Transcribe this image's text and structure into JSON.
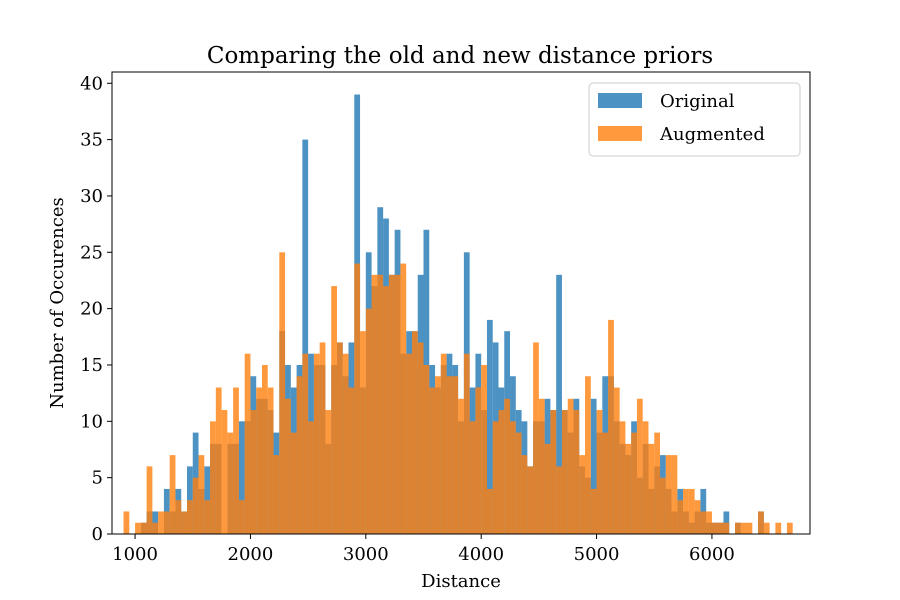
{
  "chart_data": {
    "type": "bar",
    "title": "Comparing the old and new distance priors",
    "xlabel": "Distance",
    "ylabel": "Number of Occurences",
    "xlim": [
      800,
      6850
    ],
    "ylim": [
      0,
      41
    ],
    "bin_width": 50,
    "xticks": [
      1000,
      2000,
      3000,
      4000,
      5000,
      6000
    ],
    "yticks": [
      0,
      5,
      10,
      15,
      20,
      25,
      30,
      35,
      40
    ],
    "grid": false,
    "legend_position": "top-right",
    "series": [
      {
        "name": "Original",
        "color": "#1f77b4",
        "opacity": 0.8,
        "bins": [
          [
            1050,
            1
          ],
          [
            1100,
            2
          ],
          [
            1150,
            2
          ],
          [
            1250,
            4
          ],
          [
            1300,
            2
          ],
          [
            1350,
            4
          ],
          [
            1400,
            2
          ],
          [
            1450,
            6
          ],
          [
            1500,
            9
          ],
          [
            1550,
            4
          ],
          [
            1600,
            6
          ],
          [
            1650,
            8
          ],
          [
            1700,
            8
          ],
          [
            1800,
            8
          ],
          [
            1850,
            8
          ],
          [
            1900,
            10
          ],
          [
            1950,
            10
          ],
          [
            2000,
            14
          ],
          [
            2050,
            12
          ],
          [
            2100,
            12
          ],
          [
            2150,
            11
          ],
          [
            2200,
            9
          ],
          [
            2250,
            18
          ],
          [
            2300,
            15
          ],
          [
            2350,
            13
          ],
          [
            2400,
            15
          ],
          [
            2450,
            35
          ],
          [
            2500,
            16
          ],
          [
            2550,
            15
          ],
          [
            2600,
            15
          ],
          [
            2650,
            8
          ],
          [
            2700,
            15
          ],
          [
            2750,
            17
          ],
          [
            2800,
            14
          ],
          [
            2850,
            17
          ],
          [
            2900,
            39
          ],
          [
            2950,
            13
          ],
          [
            3000,
            25
          ],
          [
            3050,
            22
          ],
          [
            3100,
            29
          ],
          [
            3150,
            28
          ],
          [
            3200,
            23
          ],
          [
            3250,
            27
          ],
          [
            3300,
            16
          ],
          [
            3350,
            18
          ],
          [
            3400,
            18
          ],
          [
            3450,
            23
          ],
          [
            3500,
            27
          ],
          [
            3550,
            15
          ],
          [
            3600,
            13
          ],
          [
            3650,
            15
          ],
          [
            3700,
            16
          ],
          [
            3750,
            15
          ],
          [
            3800,
            10
          ],
          [
            3850,
            25
          ],
          [
            3900,
            13
          ],
          [
            3950,
            16
          ],
          [
            4000,
            11
          ],
          [
            4050,
            19
          ],
          [
            4100,
            17
          ],
          [
            4150,
            13
          ],
          [
            4200,
            18
          ],
          [
            4250,
            14
          ],
          [
            4300,
            11
          ],
          [
            4350,
            10
          ],
          [
            4400,
            6
          ],
          [
            4450,
            10
          ],
          [
            4500,
            10
          ],
          [
            4550,
            12
          ],
          [
            4600,
            11
          ],
          [
            4650,
            23
          ],
          [
            4700,
            11
          ],
          [
            4750,
            9
          ],
          [
            4800,
            12
          ],
          [
            4850,
            6
          ],
          [
            4900,
            5
          ],
          [
            4950,
            12
          ],
          [
            5000,
            9
          ],
          [
            5050,
            14
          ],
          [
            5100,
            14
          ],
          [
            5150,
            10
          ],
          [
            5200,
            8
          ],
          [
            5250,
            7
          ],
          [
            5300,
            10
          ],
          [
            5350,
            5
          ],
          [
            5400,
            8
          ],
          [
            5450,
            4
          ],
          [
            5500,
            6
          ],
          [
            5550,
            7
          ],
          [
            5600,
            4
          ],
          [
            5650,
            2
          ],
          [
            5700,
            4
          ],
          [
            5750,
            2
          ],
          [
            5800,
            1
          ],
          [
            5850,
            2
          ],
          [
            5900,
            4
          ],
          [
            5950,
            1
          ],
          [
            6000,
            1
          ],
          [
            6050,
            1
          ],
          [
            6100,
            2
          ],
          [
            6200,
            1
          ],
          [
            6400,
            2
          ]
        ]
      },
      {
        "name": "Augmented",
        "color": "#ff7f0e",
        "opacity": 0.8,
        "bins": [
          [
            900,
            2
          ],
          [
            1000,
            1
          ],
          [
            1050,
            1
          ],
          [
            1100,
            6
          ],
          [
            1150,
            1
          ],
          [
            1200,
            2
          ],
          [
            1250,
            2
          ],
          [
            1300,
            7
          ],
          [
            1350,
            3
          ],
          [
            1400,
            2
          ],
          [
            1450,
            3
          ],
          [
            1500,
            5
          ],
          [
            1550,
            7
          ],
          [
            1600,
            3
          ],
          [
            1650,
            10
          ],
          [
            1700,
            13
          ],
          [
            1750,
            11
          ],
          [
            1800,
            9
          ],
          [
            1850,
            13
          ],
          [
            1900,
            3
          ],
          [
            1950,
            16
          ],
          [
            2000,
            11
          ],
          [
            2050,
            13
          ],
          [
            2100,
            15
          ],
          [
            2150,
            13
          ],
          [
            2200,
            7
          ],
          [
            2250,
            25
          ],
          [
            2300,
            12
          ],
          [
            2350,
            9
          ],
          [
            2400,
            14
          ],
          [
            2450,
            16
          ],
          [
            2500,
            10
          ],
          [
            2550,
            16
          ],
          [
            2600,
            17
          ],
          [
            2650,
            11
          ],
          [
            2700,
            22
          ],
          [
            2750,
            17
          ],
          [
            2800,
            16
          ],
          [
            2850,
            13
          ],
          [
            2900,
            24
          ],
          [
            2950,
            18
          ],
          [
            3000,
            20
          ],
          [
            3050,
            23
          ],
          [
            3100,
            23
          ],
          [
            3150,
            22
          ],
          [
            3200,
            23
          ],
          [
            3250,
            23
          ],
          [
            3300,
            24
          ],
          [
            3350,
            16
          ],
          [
            3400,
            18
          ],
          [
            3450,
            17
          ],
          [
            3500,
            15
          ],
          [
            3550,
            13
          ],
          [
            3600,
            14
          ],
          [
            3650,
            16
          ],
          [
            3700,
            14
          ],
          [
            3750,
            14
          ],
          [
            3800,
            12
          ],
          [
            3850,
            16
          ],
          [
            3900,
            10
          ],
          [
            3950,
            13
          ],
          [
            4000,
            15
          ],
          [
            4050,
            4
          ],
          [
            4100,
            10
          ],
          [
            4150,
            11
          ],
          [
            4200,
            12
          ],
          [
            4250,
            10
          ],
          [
            4300,
            9
          ],
          [
            4350,
            7
          ],
          [
            4400,
            6
          ],
          [
            4450,
            17
          ],
          [
            4500,
            12
          ],
          [
            4550,
            8
          ],
          [
            4600,
            11
          ],
          [
            4650,
            6
          ],
          [
            4700,
            11
          ],
          [
            4750,
            12
          ],
          [
            4800,
            11
          ],
          [
            4850,
            7
          ],
          [
            4900,
            14
          ],
          [
            4950,
            4
          ],
          [
            5000,
            11
          ],
          [
            5050,
            9
          ],
          [
            5100,
            19
          ],
          [
            5150,
            13
          ],
          [
            5200,
            10
          ],
          [
            5250,
            8
          ],
          [
            5300,
            9
          ],
          [
            5350,
            12
          ],
          [
            5400,
            10
          ],
          [
            5450,
            8
          ],
          [
            5500,
            9
          ],
          [
            5550,
            5
          ],
          [
            5600,
            7
          ],
          [
            5650,
            7
          ],
          [
            5700,
            3
          ],
          [
            5750,
            4
          ],
          [
            5800,
            4
          ],
          [
            5850,
            3
          ],
          [
            5900,
            2
          ],
          [
            5950,
            2
          ],
          [
            6000,
            1
          ],
          [
            6050,
            1
          ],
          [
            6100,
            1
          ],
          [
            6200,
            1
          ],
          [
            6250,
            1
          ],
          [
            6300,
            1
          ],
          [
            6400,
            2
          ],
          [
            6450,
            1
          ],
          [
            6550,
            1
          ],
          [
            6650,
            1
          ]
        ]
      }
    ]
  }
}
